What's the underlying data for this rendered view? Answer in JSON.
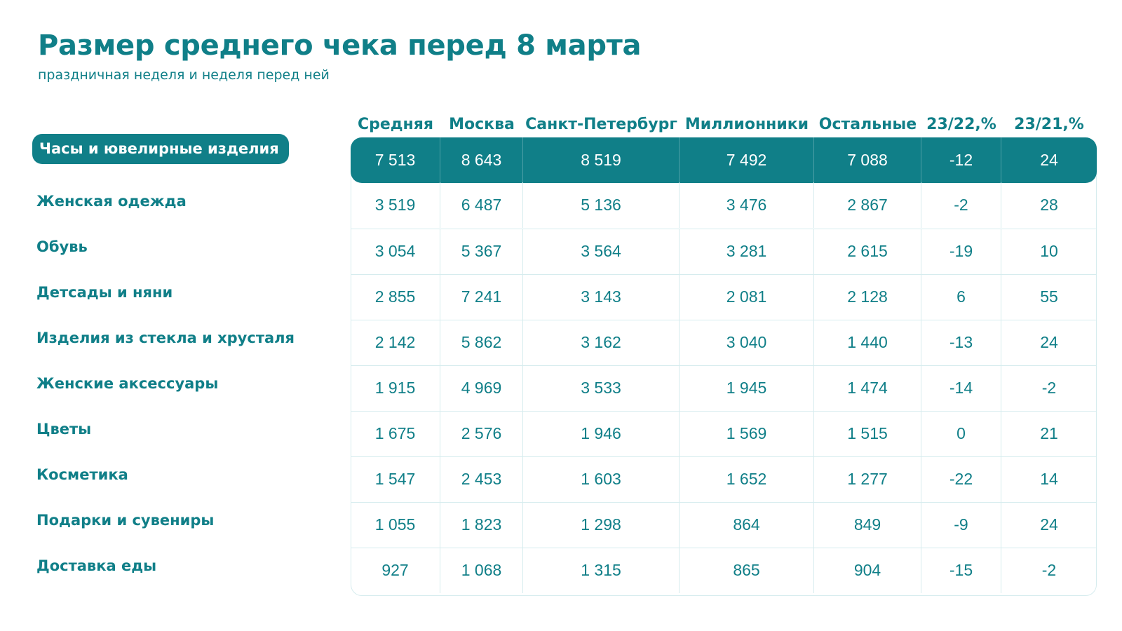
{
  "chart_data": {
    "type": "table",
    "title": "Размер среднего чека перед 8 марта",
    "subtitle": "праздничная неделя и неделя перед ней",
    "columns": [
      "Средняя",
      "Москва",
      "Санкт-Петербург",
      "Миллионники",
      "Остальные",
      "23/22,%",
      "23/21,%"
    ],
    "rows": [
      {
        "label": "Часы и ювелирные изделия",
        "values": [
          "7 513",
          "8 643",
          "8 519",
          "7 492",
          "7 088",
          "-12",
          "24"
        ]
      },
      {
        "label": "Женская одежда",
        "values": [
          "3 519",
          "6 487",
          "5 136",
          "3 476",
          "2 867",
          "-2",
          "28"
        ]
      },
      {
        "label": "Обувь",
        "values": [
          "3 054",
          "5 367",
          "3 564",
          "3 281",
          "2 615",
          "-19",
          "10"
        ]
      },
      {
        "label": "Детсады и няни",
        "values": [
          "2 855",
          "7 241",
          "3 143",
          "2 081",
          "2 128",
          "6",
          "55"
        ]
      },
      {
        "label": "Изделия из стекла и хрусталя",
        "values": [
          "2 142",
          "5 862",
          "3 162",
          "3 040",
          "1 440",
          "-13",
          "24"
        ]
      },
      {
        "label": "Женские аксессуары",
        "values": [
          "1 915",
          "4 969",
          "3 533",
          "1 945",
          "1 474",
          "-14",
          "-2"
        ]
      },
      {
        "label": "Цветы",
        "values": [
          "1 675",
          "2 576",
          "1 946",
          "1 569",
          "1 515",
          "0",
          "21"
        ]
      },
      {
        "label": "Косметика",
        "values": [
          "1 547",
          "2 453",
          "1 603",
          "1 652",
          "1 277",
          "-22",
          "14"
        ]
      },
      {
        "label": "Подарки и сувениры",
        "values": [
          "1 055",
          "1 823",
          "1 298",
          "864",
          "849",
          "-9",
          "24"
        ]
      },
      {
        "label": "Доставка еды",
        "values": [
          "927",
          "1 068",
          "1 315",
          "865",
          "904",
          "-15",
          "-2"
        ]
      }
    ],
    "highlighted_row": 0
  },
  "colors": {
    "accent": "#107f88",
    "grid": "#d6ecee",
    "background": "#ffffff"
  }
}
